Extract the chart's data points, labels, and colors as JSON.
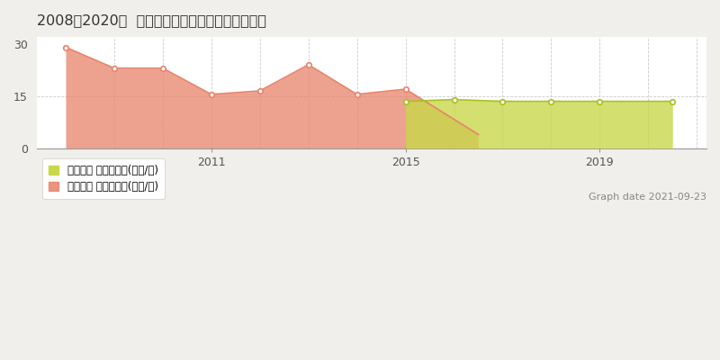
{
  "title": "2008～2020年  広島市安佐南区大塚西の地価推移",
  "background_color": "#f0efeb",
  "plot_bg_color": "#ffffff",
  "orange_series": {
    "years": [
      2008,
      2009,
      2010,
      2011,
      2012,
      2013,
      2014,
      2015,
      2016.5
    ],
    "values": [
      29.0,
      23.0,
      23.0,
      15.5,
      16.5,
      24.0,
      15.5,
      17.0,
      4.0
    ],
    "marker_years": [
      2008,
      2009,
      2010,
      2011,
      2012,
      2013,
      2014,
      2015
    ],
    "marker_values": [
      29.0,
      23.0,
      23.0,
      15.5,
      16.5,
      24.0,
      15.5,
      17.0
    ],
    "color": "#e8836a",
    "label": "取引価格 平均嵪単価(万円/嵪)"
  },
  "green_series": {
    "years": [
      2015,
      2016,
      2017,
      2018,
      2019,
      2020.5
    ],
    "values": [
      13.5,
      14.0,
      13.5,
      13.5,
      13.5,
      13.5
    ],
    "marker_years": [
      2015,
      2016,
      2017,
      2018,
      2019,
      2020.5
    ],
    "marker_values": [
      13.5,
      14.0,
      13.5,
      13.5,
      13.5,
      13.5
    ],
    "color": "#aabf20",
    "fill_color": "#c8d84a",
    "label": "地価公示 平均嵪単価(万円/嵪)"
  },
  "ylim": [
    0,
    32
  ],
  "yticks": [
    0,
    15,
    30
  ],
  "xlim": [
    2007.4,
    2021.2
  ],
  "xtick_years": [
    2011,
    2015,
    2019
  ],
  "grid_color": "#cccccc",
  "graph_date": "Graph date 2021-09-23",
  "font_color": "#555555"
}
